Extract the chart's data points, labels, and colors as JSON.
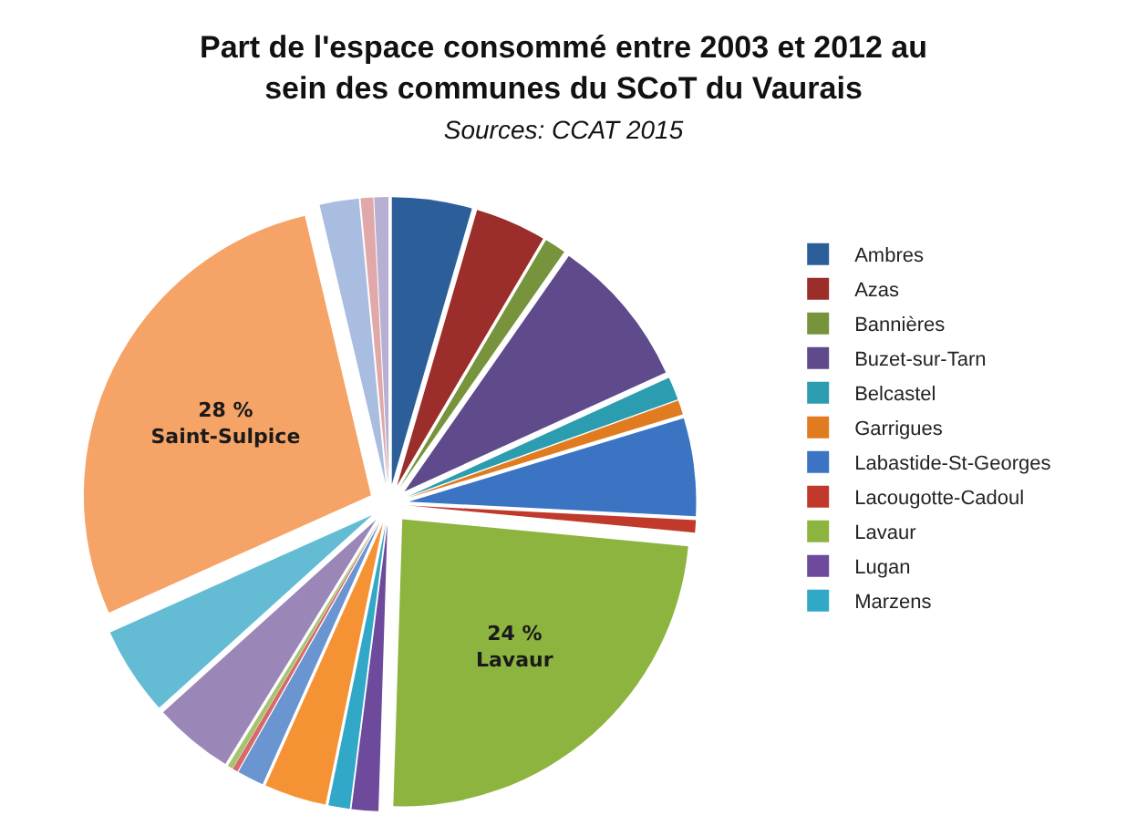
{
  "chart_data": {
    "type": "pie",
    "title": "Part de l'espace consommé entre 2003 et 2012 au sein des communes du SCoT du Vaurais",
    "subtitle": "Sources: CCAT 2015",
    "categories": [
      "Ambres",
      "Azas",
      "Bannières",
      "Buzet-sur-Tarn",
      "Belcastel",
      "Garrigues",
      "Labastide-St-Georges",
      "Lacougotte-Cadoul",
      "Lavaur",
      "Lugan",
      "Marzens",
      null,
      null,
      null,
      null,
      null,
      null,
      null,
      null,
      null,
      null
    ],
    "values": [
      4.5,
      4,
      1.2,
      8.5,
      1.3,
      0.8,
      5.5,
      0.7,
      24,
      1.5,
      1.2,
      3.5,
      1.5,
      0.3,
      0.3,
      4.5,
      5,
      28,
      2.2,
      0.7,
      0.8
    ],
    "colors": [
      "#2c5f9a",
      "#9b2d2a",
      "#77933c",
      "#5f4a8b",
      "#2c9cb0",
      "#e07b20",
      "#3a74c2",
      "#c0392b",
      "#8db43f",
      "#6d4a9c",
      "#31a8c7",
      "#f59233",
      "#6a95d0",
      "#d66a6a",
      "#a6c36d",
      "#9a87b8",
      "#63bcd4",
      "#f5a366",
      "#a9bde0",
      "#e0a8a8",
      "#b8b0d2"
    ],
    "value_labels": [
      null,
      null,
      null,
      null,
      null,
      null,
      null,
      null,
      "24 %\nLavaur",
      null,
      null,
      null,
      null,
      null,
      null,
      null,
      null,
      "28 %\nSaint-Sulpice",
      null,
      null,
      null
    ],
    "legend": "right"
  }
}
